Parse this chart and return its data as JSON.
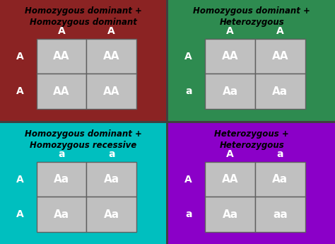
{
  "quadrants": [
    {
      "title": "Homozygous dominant +\nHomozygous dominant",
      "bg_color": "#8B2323",
      "col_headers": [
        "A",
        "A"
      ],
      "row_headers": [
        "A",
        "A"
      ],
      "cells": [
        [
          "AA",
          "AA"
        ],
        [
          "AA",
          "AA"
        ]
      ]
    },
    {
      "title": "Homozygous dominant +\nHeterozygous",
      "bg_color": "#2E8B50",
      "col_headers": [
        "A",
        "A"
      ],
      "row_headers": [
        "A",
        "a"
      ],
      "cells": [
        [
          "AA",
          "AA"
        ],
        [
          "Aa",
          "Aa"
        ]
      ]
    },
    {
      "title": "Homozygous dominant +\nHomozygous recessive",
      "bg_color": "#00BFBF",
      "col_headers": [
        "a",
        "a"
      ],
      "row_headers": [
        "A",
        "A"
      ],
      "cells": [
        [
          "Aa",
          "Aa"
        ],
        [
          "Aa",
          "Aa"
        ]
      ]
    },
    {
      "title": "Heterozygous +\nHeterozygous",
      "bg_color": "#8B00C8",
      "col_headers": [
        "A",
        "a"
      ],
      "row_headers": [
        "A",
        "a"
      ],
      "cells": [
        [
          "AA",
          "Aa"
        ],
        [
          "Aa",
          "aa"
        ]
      ]
    }
  ],
  "cell_color": "#C0C0C0",
  "cell_edge_color": "#606060",
  "cell_text_color": "white",
  "title_text_color": "black",
  "header_text_color": "white",
  "title_fontsize": 8.5,
  "header_fontsize": 10,
  "cell_fontsize": 11,
  "fig_bg": "#404040"
}
